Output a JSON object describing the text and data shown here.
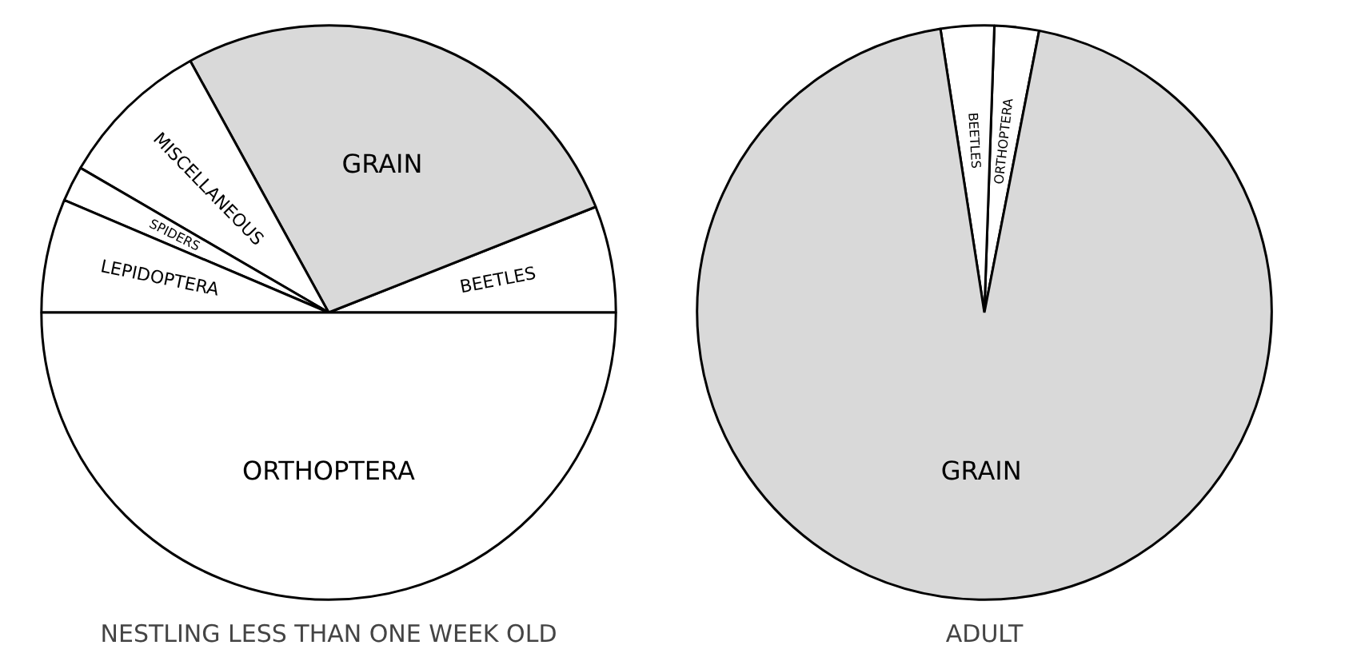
{
  "chart_data": [
    {
      "type": "pie",
      "title": "NESTLING LESS THAN ONE WEEK OLD",
      "categories": [
        "BEETLES",
        "GRAIN",
        "MISCELLANEOUS",
        "SPIDERS",
        "LEPIDOPTERA",
        "ORTHOPTERA"
      ],
      "values": [
        6,
        27,
        8.6,
        2,
        6.4,
        50
      ],
      "colors": [
        "#ffffff",
        "#d9d9d9",
        "#ffffff",
        "#ffffff",
        "#ffffff",
        "#ffffff"
      ]
    },
    {
      "type": "pie",
      "title": "ADULT",
      "categories": [
        "ORTHOPTERA",
        "BEETLES",
        "GRAIN"
      ],
      "values": [
        2.5,
        3,
        94.5
      ],
      "colors": [
        "#ffffff",
        "#ffffff",
        "#d9d9d9"
      ]
    }
  ]
}
